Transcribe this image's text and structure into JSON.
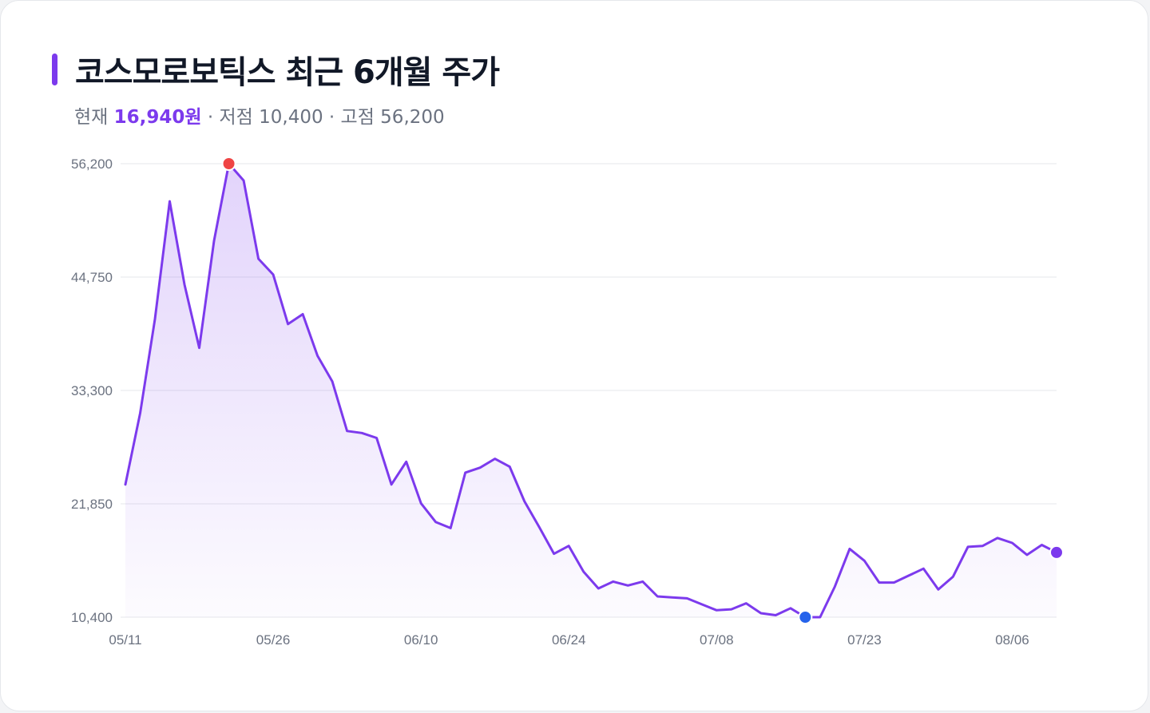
{
  "header": {
    "title": "코스모로보틱스 최근 6개월 주가",
    "current_label": "현재",
    "current_value": "16,940원",
    "low_text": "· 저점 10,400",
    "high_text": "· 고점 56,200"
  },
  "colors": {
    "line": "#7c3aed",
    "fill": "#7c3aed",
    "high_marker": "#ef4444",
    "low_marker": "#2563eb",
    "current_marker": "#7c3aed",
    "grid": "#e5e7eb",
    "tick_text": "#6b7280"
  },
  "chart_data": {
    "type": "area",
    "title": "코스모로보틱스 최근 6개월 주가",
    "xlabel": "",
    "ylabel": "",
    "grid": true,
    "legend": "none",
    "ylim": [
      10400,
      56200
    ],
    "yticks": [
      56200,
      44750,
      33300,
      21850,
      10400
    ],
    "ytick_labels": [
      "56,200",
      "44,750",
      "33,300",
      "21,850",
      "10,400"
    ],
    "xlim": [
      0,
      63
    ],
    "xticks": [
      0,
      10,
      20,
      30,
      40,
      50,
      60
    ],
    "xtick_labels": [
      "05/11",
      "05/26",
      "06/10",
      "06/24",
      "07/08",
      "07/23",
      "08/06"
    ],
    "series": [
      {
        "values": [
          23800,
          31000,
          40500,
          52400,
          44000,
          37600,
          48400,
          56200,
          54500,
          46600,
          45000,
          40000,
          41000,
          36800,
          34200,
          29200,
          29000,
          28500,
          23800,
          26100,
          21900,
          20000,
          19400,
          25000,
          25500,
          26400,
          25600,
          22100,
          19500,
          16800,
          17600,
          15000,
          13300,
          14000,
          13600,
          14000,
          12500,
          12400,
          12300,
          11700,
          11100,
          11200,
          11800,
          10800,
          10600,
          11300,
          10400,
          10400,
          13500,
          17300,
          16100,
          13900,
          13900,
          14600,
          15300,
          13200,
          14500,
          17500,
          17600,
          18400,
          17900,
          16700,
          17700,
          16940
        ],
        "high_index": 7,
        "low_index": 46,
        "current_index": 63
      }
    ]
  }
}
